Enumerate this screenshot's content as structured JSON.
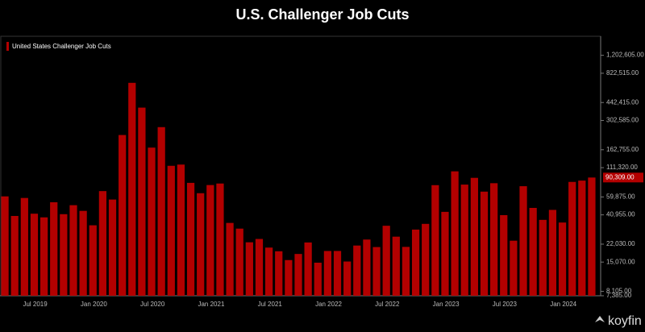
{
  "chart_data": {
    "type": "bar",
    "title": "U.S. Challenger Job Cuts",
    "legend": "United States Challenger Job Cuts",
    "watermark": "koyfin",
    "log_scale": true,
    "grid": false,
    "color": "#b30000",
    "categories": [
      null,
      null,
      null,
      null,
      "Jul 2019",
      null,
      null,
      null,
      null,
      null,
      "Jan 2020",
      null,
      null,
      null,
      null,
      null,
      "Jul 2020",
      null,
      null,
      null,
      null,
      null,
      "Jan 2021",
      null,
      null,
      null,
      null,
      null,
      "Jul 2021",
      null,
      null,
      null,
      null,
      null,
      "Jan 2022",
      null,
      null,
      null,
      null,
      null,
      "Jul 2022",
      null,
      null,
      null,
      null,
      null,
      "Jan 2023",
      null,
      null,
      null,
      null,
      null,
      "Jul 2023",
      null,
      null,
      null,
      null,
      null,
      "Jan 2024",
      null,
      null
    ],
    "values": [
      60587,
      40023,
      58577,
      41977,
      38845,
      53480,
      41557,
      50275,
      44569,
      32843,
      67735,
      56660,
      222288,
      671129,
      397016,
      170219,
      262649,
      115762,
      118804,
      80666,
      64797,
      77030,
      79552,
      34531,
      30603,
      22913,
      24586,
      20476,
      18942,
      15723,
      17895,
      22822,
      14875,
      19052,
      19064,
      15245,
      21387,
      24286,
      20712,
      32517,
      25810,
      20781,
      29989,
      33843,
      76835,
      43651,
      102943,
      77770,
      89703,
      66995,
      80089,
      40709,
      23697,
      75151,
      47457,
      36836,
      45510,
      34817,
      82307,
      84638,
      90309
    ],
    "last_value_label": "90,309.00",
    "ylim": [
      7385,
      1800000
    ],
    "yticks": [
      {
        "value": 7385,
        "label": "7,385.00"
      },
      {
        "value": 8105,
        "label": "8,105.00"
      },
      {
        "value": 15070,
        "label": "15,070.00"
      },
      {
        "value": 22030,
        "label": "22,030.00"
      },
      {
        "value": 40955,
        "label": "40,955.00"
      },
      {
        "value": 59875,
        "label": "59,875.00"
      },
      {
        "value": 111320,
        "label": "111,320.00"
      },
      {
        "value": 162755,
        "label": "162,755.00"
      },
      {
        "value": 302585,
        "label": "302,585.00"
      },
      {
        "value": 442415,
        "label": "442,415.00"
      },
      {
        "value": 822515,
        "label": "822,515.00"
      },
      {
        "value": 1202605,
        "label": "1,202,605.00"
      }
    ]
  }
}
